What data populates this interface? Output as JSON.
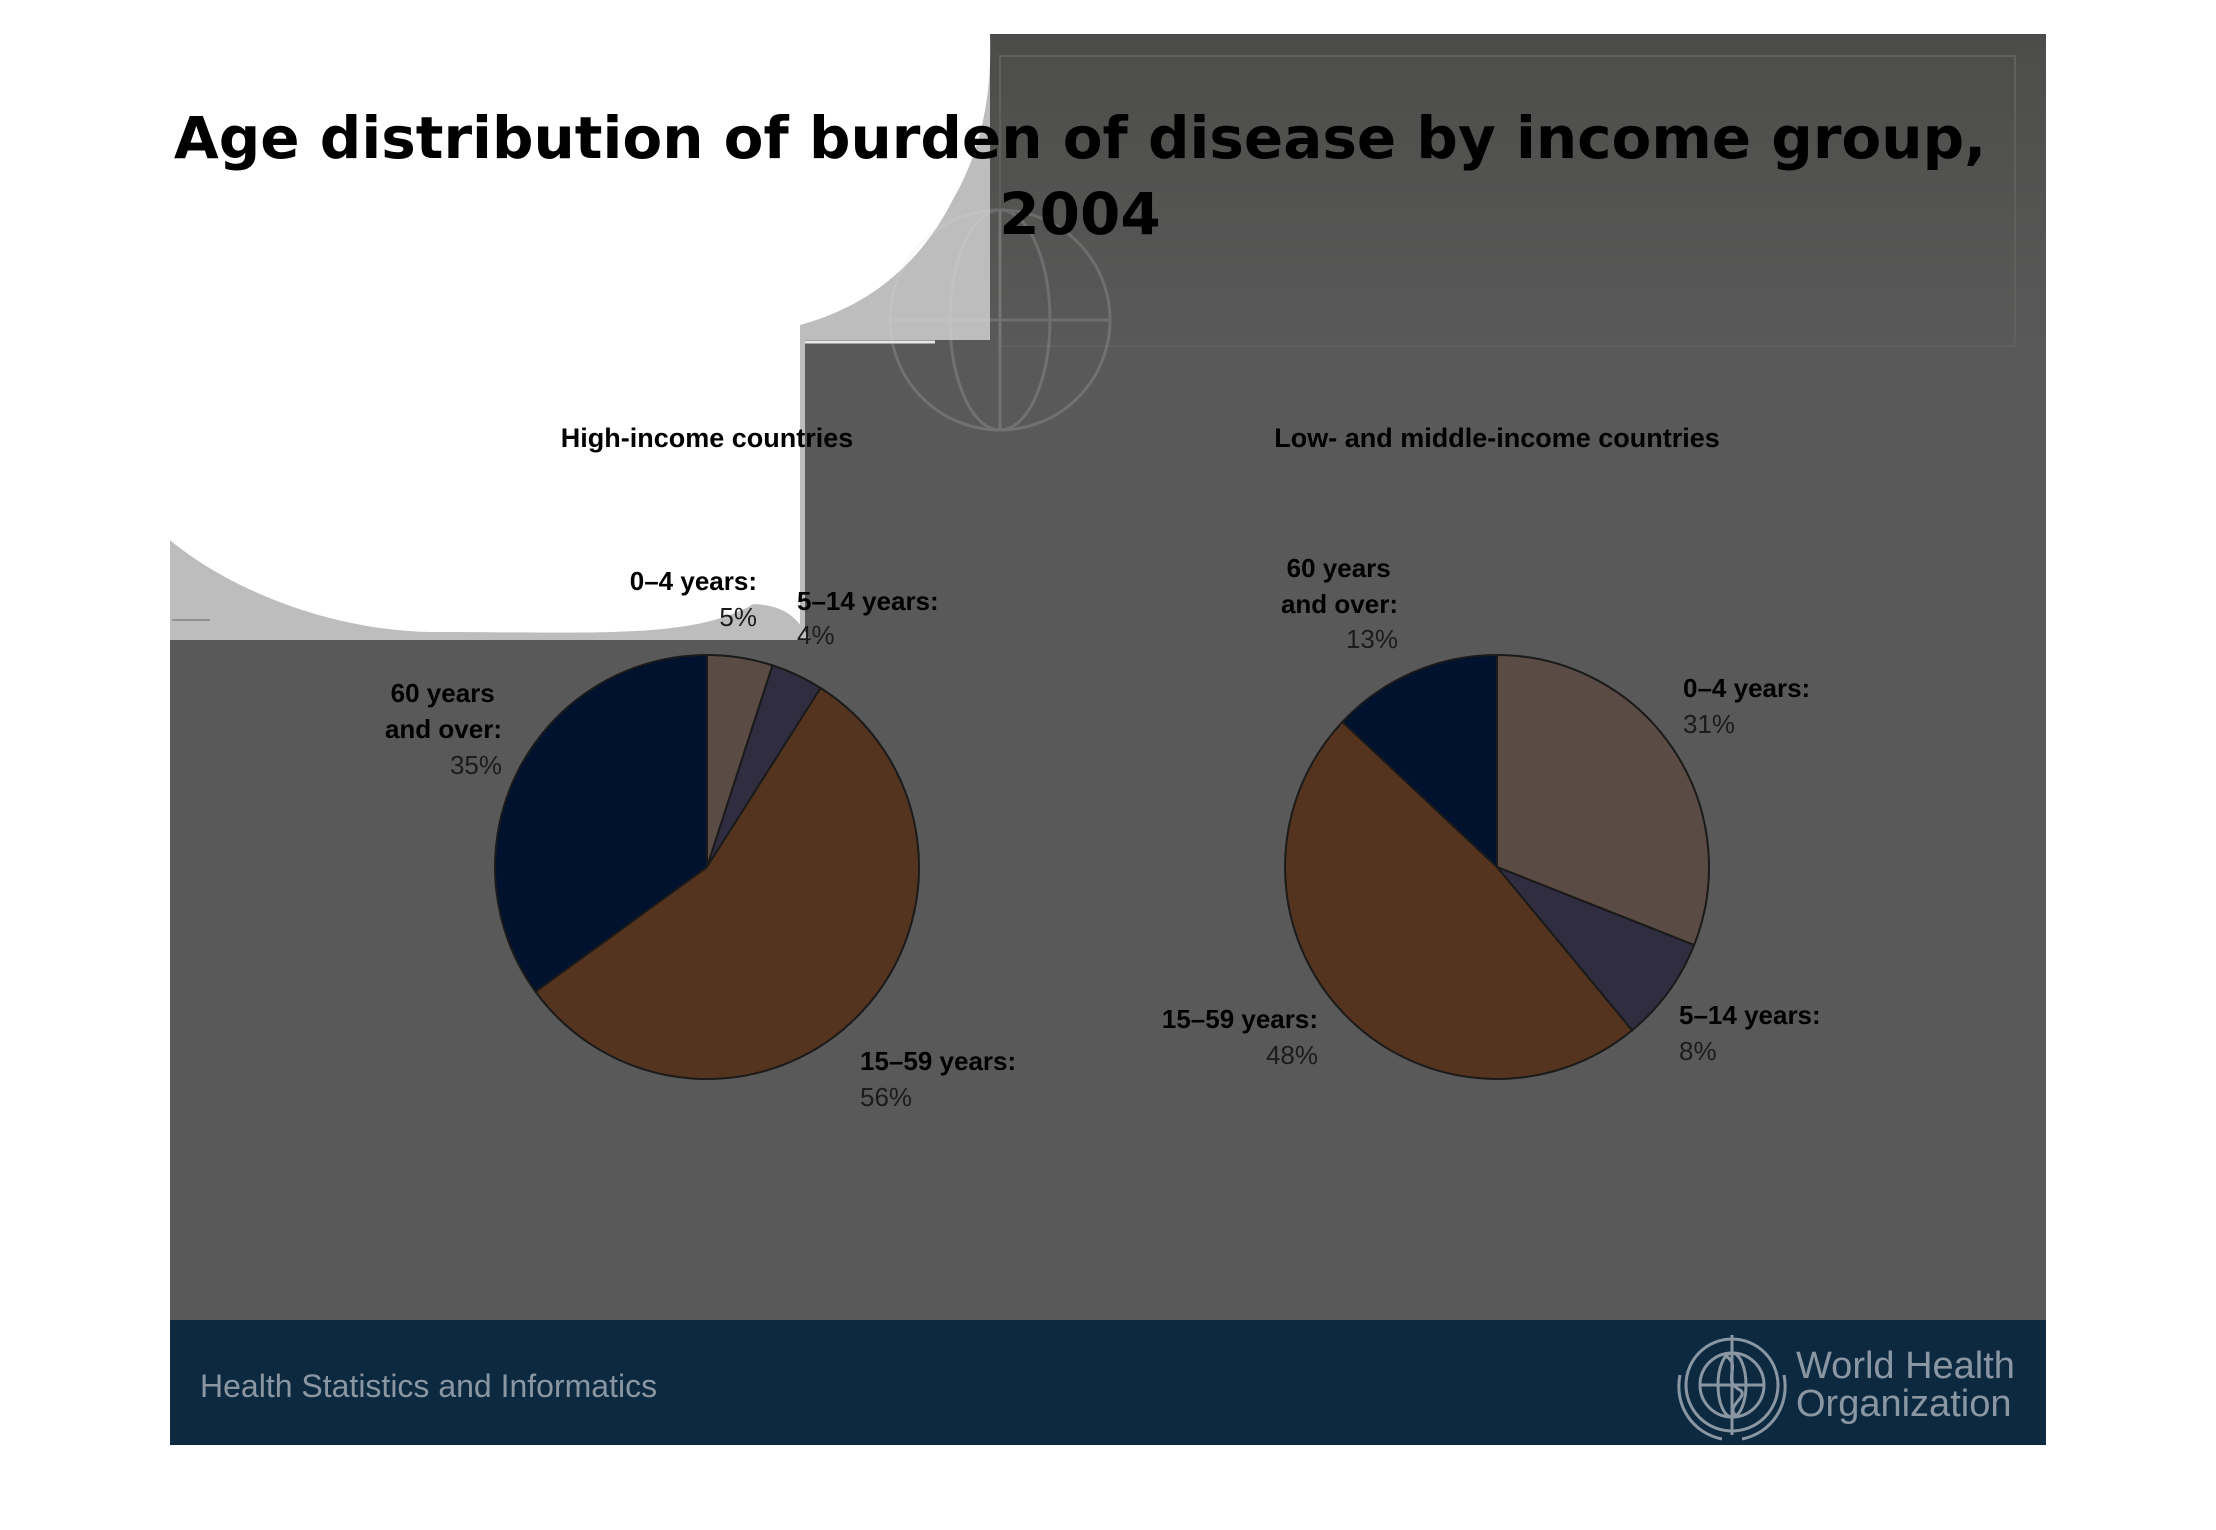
{
  "slide": {
    "title": "Age distribution of burden of disease by income group, 2004",
    "footer": "Health Statistics and Informatics",
    "logo": {
      "line1": "World Health",
      "line2": "Organization",
      "icon": "who-emblem-icon"
    },
    "colors": {
      "background": "#595959",
      "footer_band": "#0d2940",
      "footer_text": "#8a97a3"
    }
  },
  "chart_data": [
    {
      "type": "pie",
      "title": "High-income countries",
      "slices": [
        {
          "label": "0–4 years:",
          "value_label": "5%",
          "value": 5,
          "color": "#5a4c44"
        },
        {
          "label": "5–14 years:",
          "value_label": "4%",
          "value": 4,
          "color": "#302d40"
        },
        {
          "label": "15–59 years:",
          "value_label": "56%",
          "value": 56,
          "color": "#54341f"
        },
        {
          "label": "60 years and over:",
          "value_label": "35%",
          "value": 35,
          "color": "#00122e"
        }
      ]
    },
    {
      "type": "pie",
      "title": "Low- and middle-income countries",
      "slices": [
        {
          "label": "0–4 years:",
          "value_label": "31%",
          "value": 31,
          "color": "#5a4c44"
        },
        {
          "label": "5–14 years:",
          "value_label": "8%",
          "value": 8,
          "color": "#302d40"
        },
        {
          "label": "15–59 years:",
          "value_label": "48%",
          "value": 48,
          "color": "#54341f"
        },
        {
          "label": "60 years and over:",
          "value_label": "13%",
          "value": 13,
          "color": "#00122e"
        }
      ]
    }
  ]
}
